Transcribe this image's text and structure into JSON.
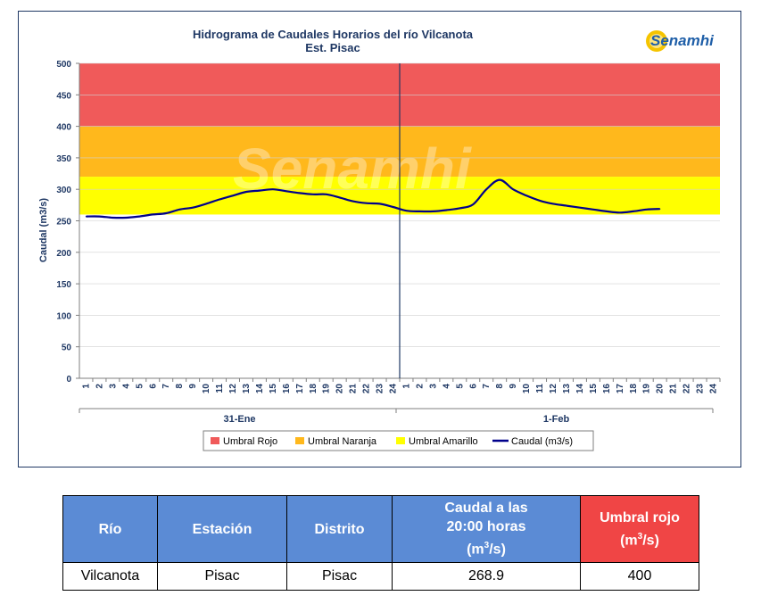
{
  "chart_data": {
    "type": "line",
    "title": "Hidrograma de Caudales Horarios del río Vilcanota",
    "subtitle": "Est. Pisac",
    "ylabel": "Caudal  (m3/s)",
    "ylim": [
      0,
      500
    ],
    "yticks": [
      "0",
      "50",
      "100",
      "150",
      "200",
      "250",
      "300",
      "350",
      "400",
      "450",
      "500"
    ],
    "xticks": [
      "1",
      "2",
      "3",
      "4",
      "5",
      "6",
      "7",
      "8",
      "9",
      "10",
      "11",
      "12",
      "13",
      "14",
      "15",
      "16",
      "17",
      "18",
      "19",
      "20",
      "21",
      "22",
      "23",
      "24"
    ],
    "days": [
      "31-Ene",
      "1-Feb"
    ],
    "bands": [
      {
        "name": "Umbral Rojo",
        "from": 400,
        "to": 500,
        "color": "#f05a5a"
      },
      {
        "name": "Umbral Naranja",
        "from": 320,
        "to": 400,
        "color": "#ffb81c"
      },
      {
        "name": "Umbral Amarillo",
        "from": 260,
        "to": 320,
        "color": "#ffff00"
      }
    ],
    "series": [
      {
        "name": "Caudal (m3/s)",
        "color": "#00008b",
        "values": [
          257,
          257,
          255,
          255,
          257,
          260,
          262,
          268,
          271,
          277,
          284,
          290,
          296,
          298,
          300,
          297,
          294,
          292,
          292,
          287,
          281,
          278,
          277,
          272,
          266,
          265,
          265,
          267,
          270,
          276,
          300,
          315,
          300,
          290,
          282,
          277,
          274,
          271,
          268,
          265,
          263,
          265,
          268,
          268.9
        ]
      }
    ],
    "legend_position": "bottom"
  },
  "logo": {
    "text": "Senamhi"
  },
  "watermark": "Senamhi",
  "table": {
    "headers": {
      "rio": "Río",
      "estacion": "Estación",
      "distrito": "Distrito",
      "caudal_line1": "Caudal a las",
      "caudal_line2": "20:00 horas",
      "caudal_line3_pre": "(m",
      "caudal_line3_sup": "3",
      "caudal_line3_post": "/s)",
      "umbral_line1": "Umbral rojo",
      "umbral_line2_pre": "(m",
      "umbral_line2_sup": "3",
      "umbral_line2_post": "/s)"
    },
    "row": {
      "rio": "Vilcanota",
      "estacion": "Pisac",
      "distrito": "Pisac",
      "caudal": "268.9",
      "umbral": "400"
    },
    "colors": {
      "header": "#5b8bd5",
      "header_red": "#f04545"
    }
  }
}
